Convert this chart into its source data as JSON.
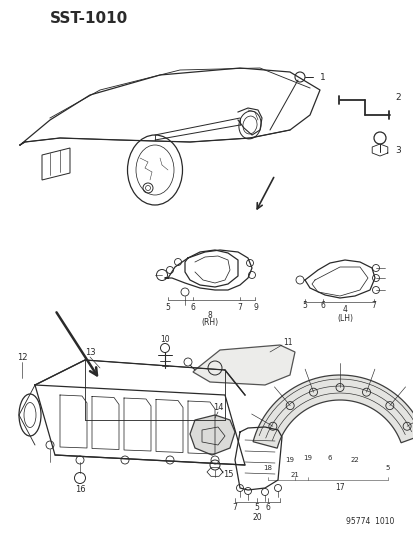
{
  "title": "SST-1010",
  "footer": "95774  1010",
  "bg_color": "#f5f5f0",
  "line_color": "#2a2a2a",
  "fig_width": 4.14,
  "fig_height": 5.33,
  "dpi": 100
}
